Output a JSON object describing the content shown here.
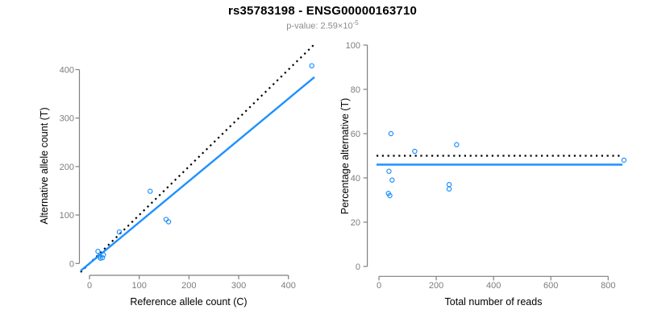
{
  "header": {
    "title": "rs35783198 - ENSG00000163710",
    "p_value_text": "p-value: 2.59×10",
    "p_value_exponent": "-5"
  },
  "colors": {
    "point_and_fit_blue": "#1E90FF",
    "dotted_reference_black": "#000000",
    "axis_line_gray": "#7f7f7f",
    "tick_label_gray": "#7d7d7d",
    "subtitle_gray": "#8c8c8c"
  },
  "chart_data": [
    {
      "id": "allele-counts-scatter",
      "type": "scatter",
      "xlabel": "Reference allele count (C)",
      "ylabel": "Alternative allele count (T)",
      "xticks": [
        0,
        100,
        200,
        300,
        400
      ],
      "yticks": [
        0,
        100,
        200,
        300,
        400
      ],
      "xlim": [
        -18,
        465
      ],
      "ylim": [
        -16,
        424
      ],
      "grid": false,
      "legend": null,
      "points": [
        [
          17,
          25
        ],
        [
          20,
          15
        ],
        [
          28,
          18
        ],
        [
          22,
          11
        ],
        [
          26,
          12
        ],
        [
          60,
          65
        ],
        [
          122,
          149
        ],
        [
          154,
          91
        ],
        [
          159,
          86
        ],
        [
          447,
          408
        ]
      ],
      "lines": [
        {
          "name": "identity-line",
          "kind": "abline",
          "slope": 1,
          "intercept": 0,
          "style": "dotted",
          "color": "#000000"
        },
        {
          "name": "fit-line",
          "kind": "abline",
          "slope": 0.85,
          "intercept": 0,
          "style": "solid",
          "color": "#1E90FF"
        }
      ]
    },
    {
      "id": "percentage-vs-reads-scatter",
      "type": "scatter",
      "xlabel": "Total number of reads",
      "ylabel": "Percentage alternative (T)",
      "xticks": [
        0,
        200,
        400,
        600,
        800
      ],
      "yticks": [
        0,
        20,
        40,
        60,
        80,
        100
      ],
      "xlim": [
        -34,
        894
      ],
      "ylim": [
        0,
        100
      ],
      "grid": false,
      "legend": null,
      "points": [
        [
          42,
          60
        ],
        [
          35,
          43
        ],
        [
          46,
          39
        ],
        [
          33,
          33
        ],
        [
          38,
          32
        ],
        [
          125,
          52
        ],
        [
          271,
          55
        ],
        [
          245,
          37
        ],
        [
          245,
          35
        ],
        [
          855,
          48
        ]
      ],
      "lines": [
        {
          "name": "fifty-percent-line",
          "kind": "hline",
          "y": 50,
          "style": "dotted",
          "color": "#000000"
        },
        {
          "name": "mean-percentage-line",
          "kind": "hline",
          "y": 46,
          "style": "solid",
          "color": "#1E90FF"
        }
      ]
    }
  ]
}
